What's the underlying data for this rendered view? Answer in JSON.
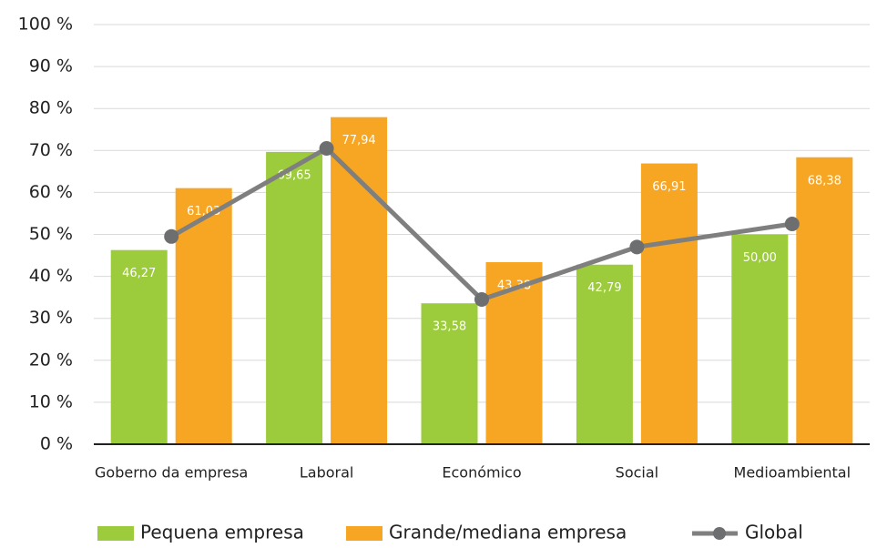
{
  "chart_data": {
    "type": "bar",
    "categories": [
      "Goberno da empresa",
      "Laboral",
      "Económico",
      "Social",
      "Medioambiental"
    ],
    "series": [
      {
        "name": "Pequena empresa",
        "color": "#9ccb3b",
        "values": [
          46.27,
          69.65,
          33.58,
          42.79,
          50.0
        ],
        "value_labels": [
          "46,27",
          "69,65",
          "33,58",
          "42,79",
          "50,00"
        ]
      },
      {
        "name": "Grande/mediana empresa",
        "color": "#f6a623",
        "values": [
          61.03,
          77.94,
          43.38,
          66.91,
          68.38
        ],
        "value_labels": [
          "61,03",
          "77,94",
          "43,38",
          "66,91",
          "68,38"
        ]
      },
      {
        "name": "Global",
        "type": "line",
        "color": "#7f7f7f",
        "values": [
          49.5,
          70.5,
          34.5,
          47,
          52.5
        ]
      }
    ],
    "ylim": [
      0,
      100
    ],
    "yticks": [
      {
        "value": 0,
        "label": "0 %"
      },
      {
        "value": 10,
        "label": "10 %"
      },
      {
        "value": 20,
        "label": "20 %"
      },
      {
        "value": 30,
        "label": "30 %"
      },
      {
        "value": 40,
        "label": "40 %"
      },
      {
        "value": 50,
        "label": "50 %"
      },
      {
        "value": 60,
        "label": "60 %"
      },
      {
        "value": 70,
        "label": "70 %"
      },
      {
        "value": 80,
        "label": "80 %"
      },
      {
        "value": 90,
        "label": "90 %"
      },
      {
        "value": 100,
        "label": "100 %"
      }
    ],
    "grid": true,
    "legend": "bottom"
  }
}
